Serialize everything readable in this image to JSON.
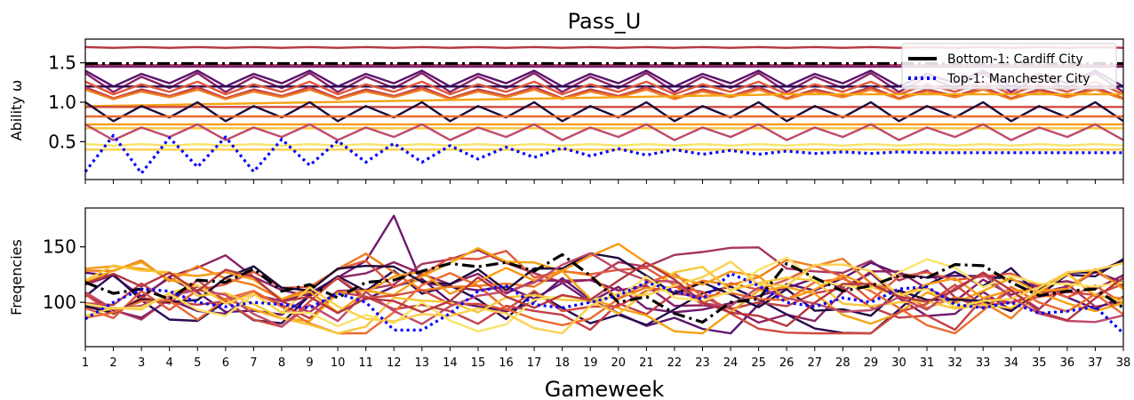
{
  "figure": {
    "title": "Pass_U",
    "xlabel": "Gameweek"
  },
  "chart_data": [
    {
      "type": "line",
      "panel": "top",
      "ylabel": "Ability ω",
      "ylim": [
        0.02,
        1.8
      ],
      "yticks": [
        0.5,
        1.0,
        1.5
      ],
      "xlim": [
        1,
        38
      ],
      "grid": false,
      "legend": {
        "placement": "top-right",
        "entries": [
          "Bottom-1: Cardiff City",
          "Top-1: Manchester City"
        ]
      },
      "x": [
        1,
        2,
        3,
        4,
        5,
        6,
        7,
        8,
        9,
        10,
        11,
        12,
        13,
        14,
        15,
        16,
        17,
        18,
        19,
        20,
        21,
        22,
        23,
        24,
        25,
        26,
        27,
        28,
        29,
        30,
        31,
        32,
        33,
        34,
        35,
        36,
        37,
        38
      ],
      "highlighted_series": [
        {
          "name": "Bottom-1: Cardiff City",
          "color": "#000000",
          "style": "dashdot",
          "values": [
            1.49,
            1.49,
            1.49,
            1.49,
            1.49,
            1.49,
            1.49,
            1.49,
            1.49,
            1.49,
            1.49,
            1.49,
            1.49,
            1.49,
            1.49,
            1.49,
            1.49,
            1.49,
            1.49,
            1.49,
            1.49,
            1.49,
            1.49,
            1.49,
            1.49,
            1.49,
            1.49,
            1.49,
            1.49,
            1.49,
            1.49,
            1.49,
            1.49,
            1.49,
            1.49,
            1.49,
            1.49,
            1.49
          ]
        },
        {
          "name": "Top-1: Manchester City",
          "color": "#0000ff",
          "style": "dotted",
          "values": [
            0.12,
            0.58,
            0.1,
            0.55,
            0.18,
            0.56,
            0.12,
            0.53,
            0.2,
            0.51,
            0.24,
            0.48,
            0.24,
            0.45,
            0.28,
            0.43,
            0.3,
            0.42,
            0.32,
            0.41,
            0.33,
            0.4,
            0.34,
            0.39,
            0.34,
            0.38,
            0.35,
            0.37,
            0.35,
            0.37,
            0.36,
            0.36,
            0.36,
            0.36,
            0.36,
            0.36,
            0.36,
            0.36
          ]
        }
      ],
      "background_series": [
        {
          "color": "#b5363f",
          "base": 1.69,
          "amp": 0.01,
          "pattern": "flat"
        },
        {
          "color": "#6e1a6e",
          "base": 1.45,
          "amp": 0.0,
          "pattern": "flat"
        },
        {
          "color": "#a8335f",
          "base": 1.47,
          "amp": 0.0,
          "pattern": "flat"
        },
        {
          "color": "#5a1470",
          "base": 1.3,
          "amp": 0.1,
          "pattern": "zigzag"
        },
        {
          "color": "#8b2064",
          "base": 1.25,
          "amp": 0.12,
          "pattern": "zigzag"
        },
        {
          "color": "#2a0c52",
          "base": 1.2,
          "amp": 0.0,
          "pattern": "flat"
        },
        {
          "color": "#e0583a",
          "base": 1.18,
          "amp": 0.08,
          "pattern": "zigzag"
        },
        {
          "color": "#c33f48",
          "base": 1.12,
          "amp": 0.07,
          "pattern": "zigzag"
        },
        {
          "color": "#f07c1e",
          "base": 1.1,
          "amp": 0.06,
          "pattern": "zigzag"
        },
        {
          "color": "#f4a312",
          "base": 0.95,
          "amp": 0.0,
          "pattern": "rise",
          "end": 1.1
        },
        {
          "color": "#d24a3e",
          "base": 0.94,
          "amp": 0.0,
          "pattern": "flat"
        },
        {
          "color": "#1e0a3c",
          "base": 0.88,
          "amp": 0.12,
          "pattern": "zigzag"
        },
        {
          "color": "#ec6a2c",
          "base": 0.82,
          "amp": 0.0,
          "pattern": "flat"
        },
        {
          "color": "#f89a15",
          "base": 0.72,
          "amp": 0.0,
          "pattern": "flat"
        },
        {
          "color": "#f6c63a",
          "base": 0.67,
          "amp": 0.0,
          "pattern": "flat"
        },
        {
          "color": "#c04a6a",
          "base": 0.62,
          "amp": 0.1,
          "pattern": "zigzag"
        },
        {
          "color": "#f7e46a",
          "base": 0.45,
          "amp": 0.02,
          "pattern": "flat"
        },
        {
          "color": "#fbd04e",
          "base": 0.4,
          "amp": 0.0,
          "pattern": "flat"
        }
      ]
    },
    {
      "type": "line",
      "panel": "bottom",
      "ylabel": "Freqencies",
      "ylim": [
        60,
        185
      ],
      "yticks": [
        100,
        150
      ],
      "xlim": [
        1,
        38
      ],
      "grid": false,
      "x": [
        1,
        2,
        3,
        4,
        5,
        6,
        7,
        8,
        9,
        10,
        11,
        12,
        13,
        14,
        15,
        16,
        17,
        18,
        19,
        20,
        21,
        22,
        23,
        24,
        25,
        26,
        27,
        28,
        29,
        30,
        31,
        32,
        33,
        34,
        35,
        36,
        37,
        38
      ],
      "highlighted_series": [
        {
          "name": "Bottom-1: Cardiff City",
          "color": "#000000",
          "style": "dashdot",
          "values": [
            118,
            108,
            112,
            103,
            120,
            118,
            130,
            110,
            116,
            104,
            118,
            120,
            128,
            135,
            132,
            136,
            128,
            143,
            124,
            100,
            105,
            90,
            82,
            100,
            103,
            135,
            122,
            110,
            115,
            124,
            122,
            134,
            133,
            118,
            106,
            110,
            112,
            95
          ]
        },
        {
          "name": "Top-1: Manchester City",
          "color": "#0000ff",
          "style": "dotted",
          "values": [
            85,
            100,
            112,
            110,
            100,
            96,
            100,
            98,
            95,
            108,
            100,
            75,
            75,
            90,
            110,
            115,
            98,
            95,
            100,
            106,
            118,
            110,
            103,
            126,
            115,
            100,
            96,
            104,
            100,
            112,
            114,
            98,
            95,
            100,
            90,
            92,
            96,
            72
          ]
        }
      ],
      "background_series": [
        {
          "color": "#6e1a6e",
          "seed": 11
        },
        {
          "color": "#a8335f",
          "seed": 12
        },
        {
          "color": "#5a1470",
          "seed": 13
        },
        {
          "color": "#8b2064",
          "seed": 14
        },
        {
          "color": "#2a0c52",
          "seed": 15
        },
        {
          "color": "#e0583a",
          "seed": 16
        },
        {
          "color": "#c33f48",
          "seed": 17
        },
        {
          "color": "#f07c1e",
          "seed": 18
        },
        {
          "color": "#f4a312",
          "seed": 19
        },
        {
          "color": "#d24a3e",
          "seed": 20
        },
        {
          "color": "#1e0a3c",
          "seed": 21
        },
        {
          "color": "#ec6a2c",
          "seed": 22
        },
        {
          "color": "#f89a15",
          "seed": 23
        },
        {
          "color": "#f6c63a",
          "seed": 24
        },
        {
          "color": "#c04a6a",
          "seed": 25
        },
        {
          "color": "#f7e46a",
          "seed": 26
        },
        {
          "color": "#fbd04e",
          "seed": 27
        },
        {
          "color": "#b5363f",
          "seed": 28
        }
      ]
    }
  ]
}
